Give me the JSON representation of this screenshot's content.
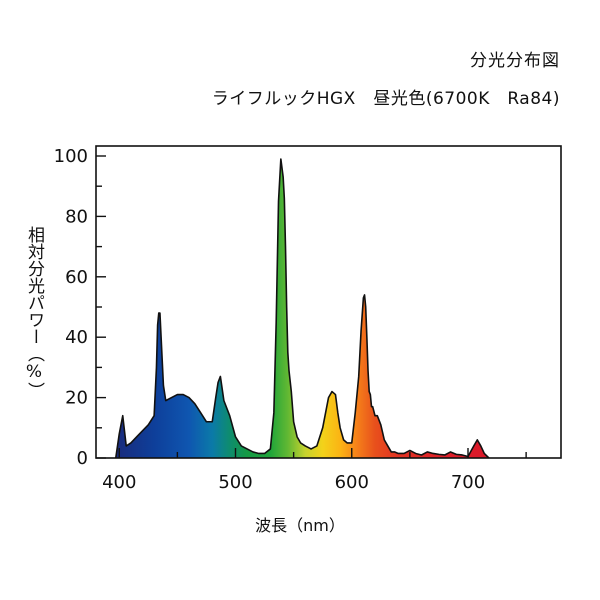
{
  "chart_data": {
    "type": "area",
    "title": "分光分布図",
    "subtitle": "ライフルックHGX　昼光色(6700K　Ra84)",
    "xlabel": "波長（nm）",
    "ylabel": "相対分光パワー（%）",
    "xlim": [
      380,
      780
    ],
    "ylim": [
      0,
      100
    ],
    "x_ticks": [
      400,
      500,
      600,
      700
    ],
    "x_minor_ticks": [
      450,
      550,
      650,
      750
    ],
    "y_ticks": [
      0,
      20,
      40,
      60,
      80,
      100
    ],
    "y_minor_ticks": [
      10,
      30,
      50,
      70,
      90
    ],
    "grid": false,
    "series": [
      {
        "x": [
          397,
          400,
          403,
          406,
          410,
          415,
          420,
          425,
          430,
          432,
          433,
          434,
          435,
          436,
          438,
          440,
          445,
          450,
          455,
          460,
          465,
          470,
          475,
          480,
          483,
          485,
          487,
          490,
          495,
          500,
          505,
          510,
          515,
          520,
          525,
          530,
          533,
          535,
          537,
          539,
          541,
          542,
          543,
          544,
          545,
          546,
          548,
          550,
          553,
          556,
          560,
          565,
          570,
          575,
          580,
          583,
          586,
          588,
          590,
          593,
          596,
          600,
          603,
          606,
          608,
          610,
          611,
          612,
          613,
          614,
          615,
          616,
          617,
          618,
          620,
          622,
          625,
          628,
          631,
          634,
          637,
          640,
          645,
          650,
          655,
          660,
          665,
          670,
          675,
          680,
          685,
          690,
          695,
          700,
          705,
          708,
          711,
          714,
          718
        ],
        "values": [
          0,
          8,
          14,
          4,
          5,
          7,
          9,
          11,
          14,
          30,
          44,
          48,
          48,
          40,
          24,
          19,
          20,
          21,
          21,
          20,
          18,
          15,
          12,
          12,
          20,
          25,
          27,
          19,
          14,
          7,
          4,
          3,
          2,
          1.5,
          1.5,
          3,
          15,
          45,
          85,
          99,
          93,
          86,
          70,
          50,
          35,
          29,
          22,
          12,
          7,
          5,
          4,
          3,
          4,
          10,
          20,
          22,
          21,
          15,
          10,
          6,
          5,
          5,
          15,
          27,
          42,
          53,
          54,
          50,
          40,
          29,
          22,
          21,
          17,
          17,
          14,
          14,
          11,
          6,
          4,
          2,
          2,
          1.5,
          1.5,
          2.5,
          1.5,
          1,
          2,
          1.5,
          1.2,
          1,
          2,
          1.2,
          1,
          0.5,
          4,
          6,
          4,
          1.5,
          0
        ]
      }
    ]
  }
}
